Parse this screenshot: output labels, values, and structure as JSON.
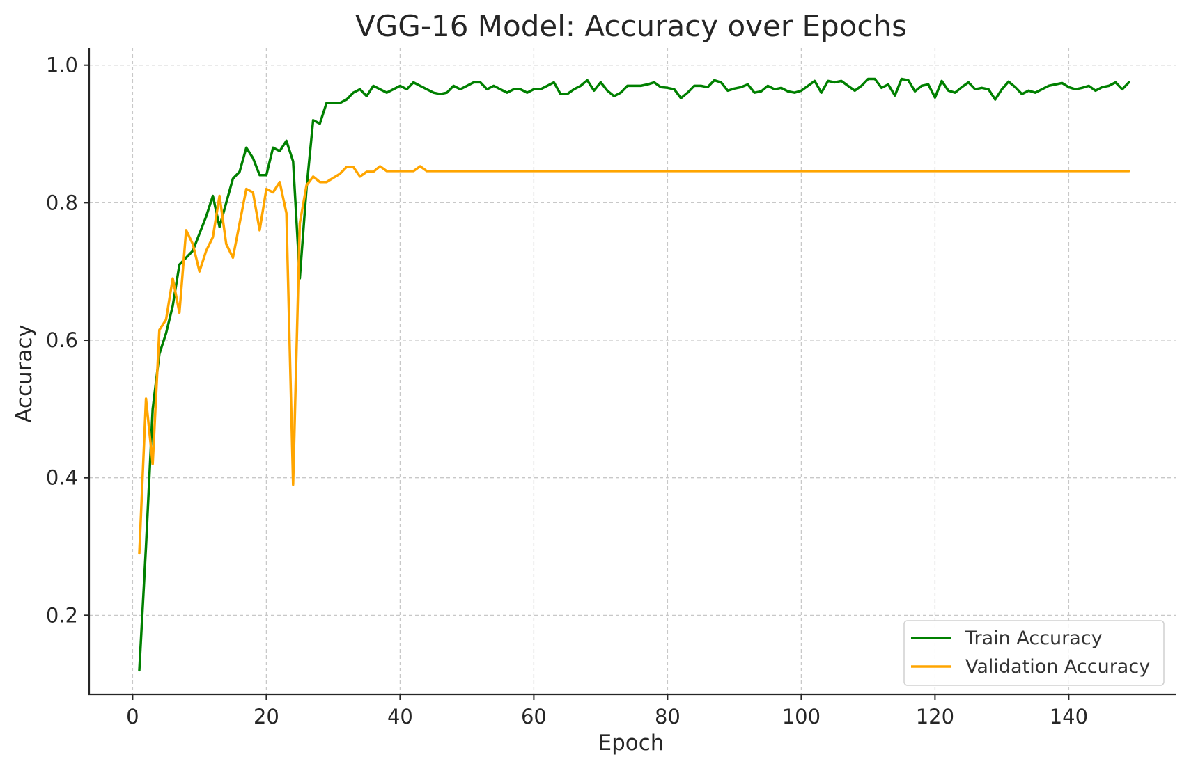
{
  "chart_data": {
    "type": "line",
    "title": "VGG-16 Model: Accuracy over Epochs",
    "xlabel": "Epoch",
    "ylabel": "Accuracy",
    "xlim": [
      -6.5,
      156
    ],
    "ylim": [
      0.085,
      1.025
    ],
    "xticks": [
      0,
      20,
      40,
      60,
      80,
      100,
      120,
      140
    ],
    "yticks": [
      0.2,
      0.4,
      0.6,
      0.8,
      1.0
    ],
    "ytick_labels": [
      "0.2",
      "0.4",
      "0.6",
      "0.8",
      "1.0"
    ],
    "grid": true,
    "legend_position": "lower-right",
    "x_start": 1,
    "series": [
      {
        "name": "Train Accuracy",
        "color": "#008000",
        "values": [
          0.12,
          0.3,
          0.5,
          0.58,
          0.61,
          0.65,
          0.71,
          0.72,
          0.73,
          0.755,
          0.78,
          0.81,
          0.765,
          0.8,
          0.835,
          0.845,
          0.88,
          0.865,
          0.84,
          0.84,
          0.88,
          0.875,
          0.89,
          0.86,
          0.69,
          0.82,
          0.92,
          0.915,
          0.945,
          0.945,
          0.945,
          0.95,
          0.96,
          0.965,
          0.955,
          0.97,
          0.965,
          0.96,
          0.965,
          0.97,
          0.965,
          0.975,
          0.97,
          0.965,
          0.96,
          0.958,
          0.96,
          0.97,
          0.965,
          0.97,
          0.975,
          0.975,
          0.965,
          0.97,
          0.965,
          0.96,
          0.965,
          0.965,
          0.96,
          0.965,
          0.965,
          0.97,
          0.975,
          0.958,
          0.958,
          0.965,
          0.97,
          0.978,
          0.963,
          0.975,
          0.963,
          0.955,
          0.96,
          0.97,
          0.97,
          0.97,
          0.972,
          0.975,
          0.968,
          0.967,
          0.965,
          0.952,
          0.96,
          0.97,
          0.97,
          0.968,
          0.978,
          0.975,
          0.963,
          0.966,
          0.968,
          0.972,
          0.96,
          0.962,
          0.97,
          0.965,
          0.967,
          0.962,
          0.96,
          0.963,
          0.97,
          0.977,
          0.96,
          0.977,
          0.975,
          0.977,
          0.97,
          0.963,
          0.97,
          0.98,
          0.98,
          0.967,
          0.972,
          0.956,
          0.98,
          0.978,
          0.962,
          0.97,
          0.972,
          0.953,
          0.977,
          0.963,
          0.96,
          0.968,
          0.975,
          0.965,
          0.967,
          0.965,
          0.95,
          0.965,
          0.976,
          0.968,
          0.958,
          0.963,
          0.96,
          0.965,
          0.97,
          0.972,
          0.974,
          0.968,
          0.965,
          0.967,
          0.97,
          0.963,
          0.968,
          0.97,
          0.975,
          0.965,
          0.975
        ]
      },
      {
        "name": "Validation Accuracy",
        "color": "#FFA500",
        "values": [
          0.29,
          0.515,
          0.42,
          0.615,
          0.63,
          0.69,
          0.64,
          0.76,
          0.74,
          0.7,
          0.73,
          0.75,
          0.81,
          0.74,
          0.72,
          0.77,
          0.82,
          0.815,
          0.76,
          0.82,
          0.815,
          0.83,
          0.785,
          0.39,
          0.77,
          0.825,
          0.838,
          0.83,
          0.83,
          0.836,
          0.842,
          0.852,
          0.852,
          0.838,
          0.845,
          0.845,
          0.853,
          0.846,
          0.846,
          0.846,
          0.846,
          0.846,
          0.853,
          0.846,
          0.846,
          0.846,
          0.846,
          0.846,
          0.846,
          0.846,
          0.846,
          0.846,
          0.846,
          0.846,
          0.846,
          0.846,
          0.846,
          0.846,
          0.846,
          0.846,
          0.846,
          0.846,
          0.846,
          0.846,
          0.846,
          0.846,
          0.846,
          0.846,
          0.846,
          0.846,
          0.846,
          0.846,
          0.846,
          0.846,
          0.846,
          0.846,
          0.846,
          0.846,
          0.846,
          0.846,
          0.846,
          0.846,
          0.846,
          0.846,
          0.846,
          0.846,
          0.846,
          0.846,
          0.846,
          0.846,
          0.846,
          0.846,
          0.846,
          0.846,
          0.846,
          0.846,
          0.846,
          0.846,
          0.846,
          0.846,
          0.846,
          0.846,
          0.846,
          0.846,
          0.846,
          0.846,
          0.846,
          0.846,
          0.846,
          0.846,
          0.846,
          0.846,
          0.846,
          0.846,
          0.846,
          0.846,
          0.846,
          0.846,
          0.846,
          0.846,
          0.846,
          0.846,
          0.846,
          0.846,
          0.846,
          0.846,
          0.846,
          0.846,
          0.846,
          0.846,
          0.846,
          0.846,
          0.846,
          0.846,
          0.846,
          0.846,
          0.846,
          0.846,
          0.846,
          0.846,
          0.846,
          0.846,
          0.846,
          0.846,
          0.846,
          0.846,
          0.846,
          0.846,
          0.846
        ]
      }
    ]
  }
}
